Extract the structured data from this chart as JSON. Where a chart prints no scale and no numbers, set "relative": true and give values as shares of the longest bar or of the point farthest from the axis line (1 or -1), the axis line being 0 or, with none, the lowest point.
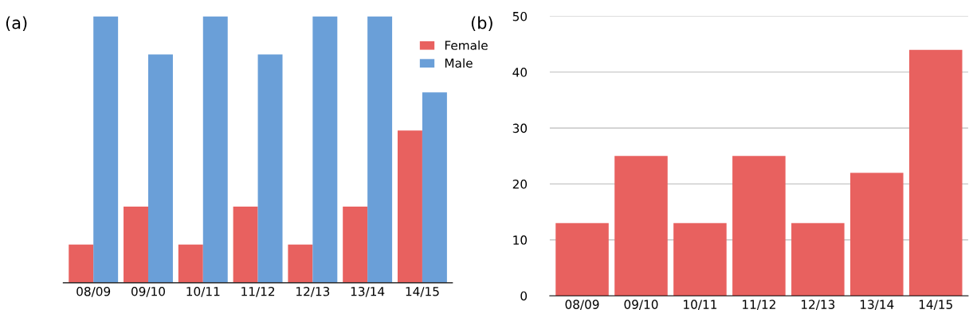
{
  "chart_data": [
    {
      "type": "bar",
      "annotations": [
        "(a)"
      ],
      "categories": [
        "08/09",
        "09/10",
        "10/11",
        "11/12",
        "12/13",
        "13/14",
        "14/15"
      ],
      "relative": true,
      "legend": "top right",
      "series": [
        {
          "name": "Female",
          "color": "#e8615f",
          "values": [
            0.143,
            0.286,
            0.143,
            0.286,
            0.143,
            0.286,
            0.571
          ]
        },
        {
          "name": "Male",
          "color": "#6a9fd8",
          "values": [
            1,
            0.857,
            1,
            0.857,
            1,
            1,
            0.714
          ]
        }
      ]
    },
    {
      "type": "bar",
      "annotations": [
        "(b)"
      ],
      "categories": [
        "08/09",
        "09/10",
        "10/11",
        "11/12",
        "12/13",
        "13/14",
        "14/15"
      ],
      "ylim": [
        0,
        50
      ],
      "yticks": [
        0,
        10,
        20,
        30,
        40,
        50
      ],
      "grid": "y",
      "series": [
        {
          "color": "#e8615f",
          "values": [
            13,
            25,
            13,
            25,
            13,
            22,
            44
          ]
        }
      ]
    }
  ]
}
